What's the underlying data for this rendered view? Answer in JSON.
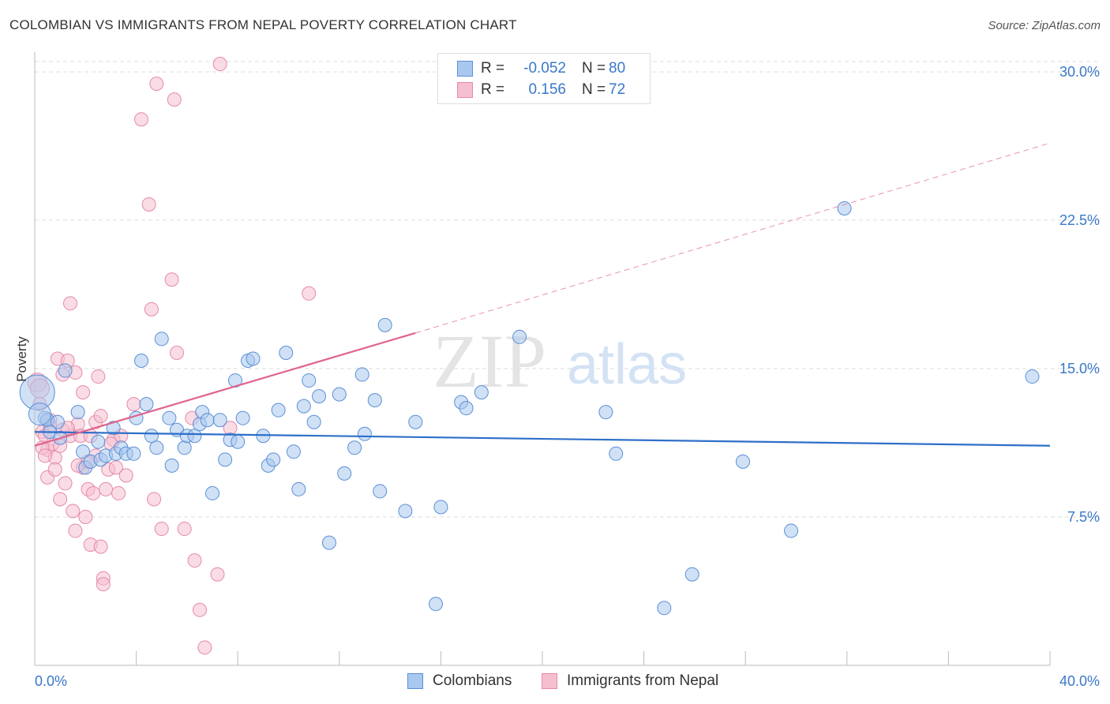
{
  "title": "COLOMBIAN VS IMMIGRANTS FROM NEPAL POVERTY CORRELATION CHART",
  "source": "Source: ZipAtlas.com",
  "watermark": {
    "zip": "ZIP",
    "atlas": "atlas"
  },
  "colors": {
    "blue_fill": "#a9c8ef",
    "blue_stroke": "#5b8fd6",
    "blue_line": "#2f6fc9",
    "pink_fill": "#f6bfd0",
    "pink_stroke": "#e58aa8",
    "pink_line": "#e0648e",
    "axis_label": "#3a78c9",
    "grid": "#dddddd"
  },
  "legend": {
    "rows": [
      {
        "r_label": "R =",
        "r_value": "-0.052",
        "n_label": "N =",
        "n_value": "80"
      },
      {
        "r_label": "R =",
        "r_value": "0.156",
        "n_label": "N =",
        "n_value": "72"
      }
    ]
  },
  "bottom_legend": [
    "Colombians",
    "Immigrants from Nepal"
  ],
  "chart_data": {
    "type": "scatter",
    "title": "COLOMBIAN VS IMMIGRANTS FROM NEPAL POVERTY CORRELATION CHART",
    "xlabel": "",
    "ylabel": "Poverty",
    "xlim": [
      0,
      40
    ],
    "ylim": [
      0,
      31
    ],
    "x_tick_labels": [
      "0.0%",
      "40.0%"
    ],
    "y_ticks": [
      7.5,
      15.0,
      22.5,
      30.0
    ],
    "y_tick_labels": [
      "7.5%",
      "15.0%",
      "22.5%",
      "30.0%"
    ],
    "grid": "horizontal dashed",
    "series": [
      {
        "name": "Colombians",
        "trend": {
          "x": [
            0,
            40
          ],
          "y": [
            11.8,
            11.1
          ],
          "style": "solid"
        },
        "points": [
          [
            0.1,
            13.8
          ],
          [
            0.4,
            12.5
          ],
          [
            0.5,
            12.4
          ],
          [
            0.9,
            12.3
          ],
          [
            0.6,
            11.8
          ],
          [
            1.0,
            11.5
          ],
          [
            1.2,
            14.9
          ],
          [
            1.7,
            12.8
          ],
          [
            1.9,
            10.8
          ],
          [
            2.0,
            10.0
          ],
          [
            2.2,
            10.3
          ],
          [
            2.5,
            11.3
          ],
          [
            2.6,
            10.4
          ],
          [
            2.8,
            10.6
          ],
          [
            3.1,
            12.0
          ],
          [
            3.2,
            10.7
          ],
          [
            3.4,
            11.0
          ],
          [
            3.6,
            10.7
          ],
          [
            3.9,
            10.7
          ],
          [
            4.0,
            12.5
          ],
          [
            4.2,
            15.4
          ],
          [
            4.4,
            13.2
          ],
          [
            4.6,
            11.6
          ],
          [
            4.8,
            11.0
          ],
          [
            5.0,
            16.5
          ],
          [
            5.3,
            12.5
          ],
          [
            5.4,
            10.1
          ],
          [
            5.6,
            11.9
          ],
          [
            5.9,
            11.0
          ],
          [
            6.0,
            11.6
          ],
          [
            6.3,
            11.6
          ],
          [
            6.5,
            12.2
          ],
          [
            6.6,
            12.8
          ],
          [
            6.8,
            12.4
          ],
          [
            7.0,
            8.7
          ],
          [
            7.3,
            12.4
          ],
          [
            7.5,
            10.4
          ],
          [
            7.7,
            11.4
          ],
          [
            7.9,
            14.4
          ],
          [
            8.0,
            11.3
          ],
          [
            8.2,
            12.5
          ],
          [
            8.4,
            15.4
          ],
          [
            8.6,
            15.5
          ],
          [
            9.0,
            11.6
          ],
          [
            9.2,
            10.1
          ],
          [
            9.4,
            10.4
          ],
          [
            9.6,
            12.9
          ],
          [
            9.9,
            15.8
          ],
          [
            10.2,
            10.8
          ],
          [
            10.4,
            8.9
          ],
          [
            10.6,
            13.1
          ],
          [
            10.8,
            14.4
          ],
          [
            11.0,
            12.3
          ],
          [
            11.2,
            13.6
          ],
          [
            11.6,
            6.2
          ],
          [
            12.0,
            13.7
          ],
          [
            12.2,
            9.7
          ],
          [
            12.6,
            11.0
          ],
          [
            12.9,
            14.7
          ],
          [
            13.0,
            11.7
          ],
          [
            13.4,
            13.4
          ],
          [
            13.6,
            8.8
          ],
          [
            13.8,
            17.2
          ],
          [
            14.6,
            7.8
          ],
          [
            15.0,
            12.3
          ],
          [
            15.8,
            3.1
          ],
          [
            16.0,
            8.0
          ],
          [
            16.8,
            13.3
          ],
          [
            17.0,
            13.0
          ],
          [
            17.6,
            13.8
          ],
          [
            19.1,
            16.6
          ],
          [
            22.5,
            12.8
          ],
          [
            22.9,
            10.7
          ],
          [
            24.8,
            2.9
          ],
          [
            25.9,
            4.6
          ],
          [
            27.9,
            10.3
          ],
          [
            29.8,
            6.8
          ],
          [
            31.9,
            23.1
          ],
          [
            39.3,
            14.6
          ],
          [
            0.2,
            12.7
          ]
        ]
      },
      {
        "name": "Immigrants from Nepal",
        "trend": {
          "x": [
            0,
            15.0
          ],
          "y": [
            11.1,
            16.8
          ],
          "style": "solid",
          "extension": {
            "x": [
              15.0,
              40
            ],
            "y": [
              16.8,
              26.4
            ],
            "style": "dashed"
          }
        },
        "points": [
          [
            0.1,
            14.3
          ],
          [
            0.2,
            14.0
          ],
          [
            0.3,
            11.8
          ],
          [
            0.4,
            11.6
          ],
          [
            0.5,
            10.9
          ],
          [
            0.5,
            9.5
          ],
          [
            0.6,
            12.4
          ],
          [
            0.7,
            11.2
          ],
          [
            0.8,
            10.5
          ],
          [
            0.9,
            15.5
          ],
          [
            1.0,
            11.1
          ],
          [
            1.0,
            8.4
          ],
          [
            1.1,
            14.7
          ],
          [
            1.2,
            9.2
          ],
          [
            1.3,
            15.4
          ],
          [
            1.4,
            18.3
          ],
          [
            1.4,
            11.6
          ],
          [
            1.5,
            7.8
          ],
          [
            1.6,
            6.8
          ],
          [
            1.7,
            12.2
          ],
          [
            1.8,
            11.6
          ],
          [
            1.9,
            13.8
          ],
          [
            1.9,
            10.0
          ],
          [
            2.0,
            7.5
          ],
          [
            2.1,
            8.9
          ],
          [
            2.2,
            6.1
          ],
          [
            2.2,
            11.6
          ],
          [
            2.3,
            8.7
          ],
          [
            2.4,
            10.6
          ],
          [
            2.4,
            12.3
          ],
          [
            2.5,
            14.6
          ],
          [
            2.6,
            12.6
          ],
          [
            2.6,
            6.0
          ],
          [
            2.7,
            4.4
          ],
          [
            2.7,
            4.1
          ],
          [
            2.8,
            8.9
          ],
          [
            2.9,
            9.9
          ],
          [
            3.1,
            11.4
          ],
          [
            3.2,
            10.0
          ],
          [
            3.3,
            8.7
          ],
          [
            3.6,
            9.6
          ],
          [
            3.9,
            13.2
          ],
          [
            4.2,
            27.6
          ],
          [
            4.5,
            23.3
          ],
          [
            4.6,
            18.0
          ],
          [
            4.7,
            8.4
          ],
          [
            4.8,
            29.4
          ],
          [
            5.0,
            6.9
          ],
          [
            5.4,
            19.5
          ],
          [
            5.5,
            28.6
          ],
          [
            5.6,
            15.8
          ],
          [
            5.9,
            6.9
          ],
          [
            6.2,
            12.5
          ],
          [
            6.3,
            5.3
          ],
          [
            6.5,
            2.8
          ],
          [
            6.7,
            0.9
          ],
          [
            7.2,
            4.6
          ],
          [
            7.7,
            12.0
          ],
          [
            10.8,
            18.8
          ],
          [
            7.3,
            30.4
          ],
          [
            3.0,
            11.2
          ],
          [
            0.3,
            11.0
          ],
          [
            0.6,
            12.1
          ],
          [
            1.1,
            11.9
          ],
          [
            0.4,
            10.6
          ],
          [
            1.7,
            10.1
          ],
          [
            2.1,
            10.3
          ],
          [
            0.8,
            9.9
          ],
          [
            1.3,
            12.0
          ],
          [
            3.4,
            11.6
          ],
          [
            0.2,
            13.2
          ],
          [
            1.6,
            14.8
          ]
        ]
      }
    ]
  }
}
